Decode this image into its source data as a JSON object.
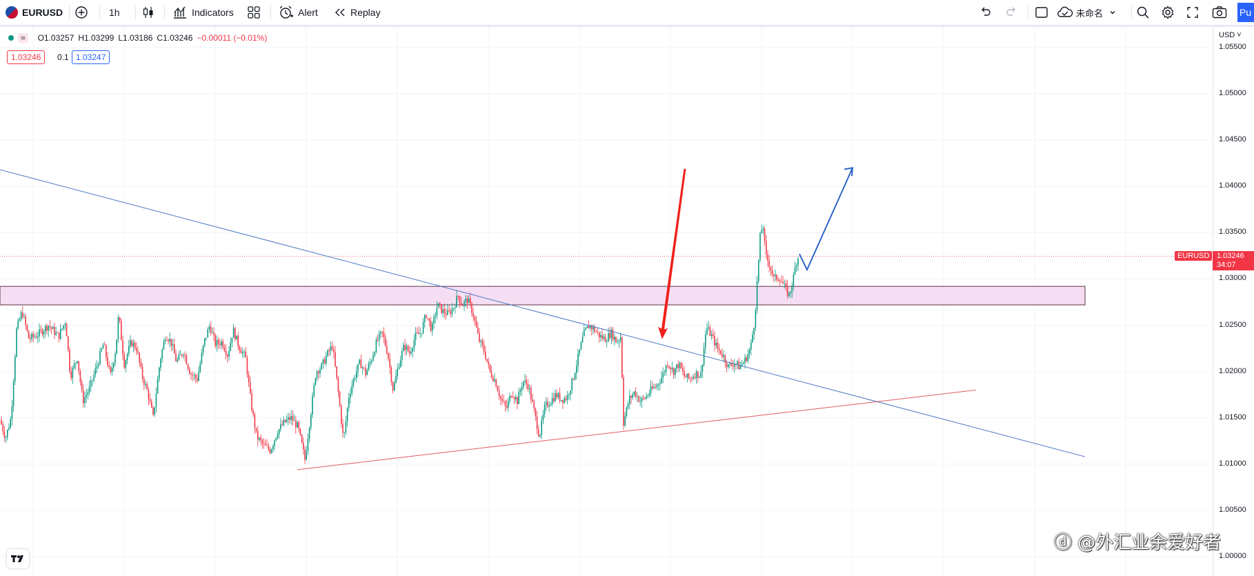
{
  "toolbar": {
    "symbol": "EURUSD",
    "interval": "1h",
    "indicators_label": "Indicators",
    "alert_label": "Alert",
    "replay_label": "Replay",
    "layout_name": "未命名",
    "publish_label": "Pu"
  },
  "legend": {
    "dot_color": "#089981",
    "symbol_glyph": "≈",
    "open": "O1.03257",
    "high": "H1.03299",
    "low": "L1.03186",
    "close": "C1.03246",
    "change": "−0.00011 (−0.01%)",
    "bid": "1.03246",
    "spread": "0.1",
    "ask": "1.03247"
  },
  "price_axis": {
    "currency": "USD",
    "ticks": [
      "1.05500",
      "1.05000",
      "1.04500",
      "1.04000",
      "1.03500",
      "1.03000",
      "1.02500",
      "1.02000",
      "1.01500",
      "1.01000",
      "1.00500",
      "1.00000"
    ],
    "last_symbol": "EURUSD",
    "last_price": "1.03246",
    "countdown": "34:07"
  },
  "colors": {
    "up": "#089981",
    "down": "#f23645",
    "trendline_blue": "#4a78c4",
    "trendline_red": "#e05a63",
    "zone_fill": "#f5def3",
    "zone_border": "#5a3045",
    "arrow_red": "#f0201c",
    "arrow_blue": "#2f66c8"
  },
  "chart_data": {
    "type": "candlestick",
    "symbol": "EURUSD",
    "interval": "1h",
    "last_close": 1.03246,
    "resistance_zone": [
      1.0272,
      1.0292
    ],
    "descending_trendline": [
      [
        0,
        1.0418
      ],
      [
        1573,
        1.0108
      ]
    ],
    "ascending_trendline": [
      [
        431,
        1.0094
      ],
      [
        1415,
        1.018
      ]
    ],
    "annotations": [
      {
        "type": "arrow",
        "color": "red",
        "from": [
          993,
          1.0419
        ],
        "to": [
          960,
          1.0235
        ]
      },
      {
        "type": "path-arrow",
        "color": "blue",
        "points": [
          [
            1159,
            1.0327
          ],
          [
            1170,
            1.031
          ],
          [
            1236,
            1.042
          ]
        ]
      }
    ],
    "path_points": [
      [
        0,
        1.0148
      ],
      [
        8,
        1.0128
      ],
      [
        16,
        1.015
      ],
      [
        24,
        1.0245
      ],
      [
        32,
        1.0265
      ],
      [
        42,
        1.0235
      ],
      [
        55,
        1.024
      ],
      [
        70,
        1.025
      ],
      [
        85,
        1.0238
      ],
      [
        95,
        1.0255
      ],
      [
        102,
        1.0195
      ],
      [
        112,
        1.0215
      ],
      [
        120,
        1.0168
      ],
      [
        130,
        1.0182
      ],
      [
        140,
        1.0205
      ],
      [
        150,
        1.023
      ],
      [
        160,
        1.0195
      ],
      [
        168,
        1.0225
      ],
      [
        172,
        1.0262
      ],
      [
        180,
        1.0208
      ],
      [
        190,
        1.0232
      ],
      [
        198,
        1.0225
      ],
      [
        206,
        1.0195
      ],
      [
        214,
        1.0178
      ],
      [
        222,
        1.015
      ],
      [
        232,
        1.0212
      ],
      [
        240,
        1.024
      ],
      [
        248,
        1.0232
      ],
      [
        256,
        1.021
      ],
      [
        266,
        1.0222
      ],
      [
        276,
        1.0198
      ],
      [
        286,
        1.0192
      ],
      [
        296,
        1.0232
      ],
      [
        304,
        1.025
      ],
      [
        312,
        1.023
      ],
      [
        322,
        1.0232
      ],
      [
        330,
        1.0218
      ],
      [
        338,
        1.0245
      ],
      [
        346,
        1.0228
      ],
      [
        356,
        1.0215
      ],
      [
        364,
        1.0165
      ],
      [
        372,
        1.013
      ],
      [
        382,
        1.012
      ],
      [
        392,
        1.0115
      ],
      [
        402,
        1.0135
      ],
      [
        412,
        1.0145
      ],
      [
        422,
        1.015
      ],
      [
        432,
        1.014
      ],
      [
        442,
        1.0105
      ],
      [
        450,
        1.0152
      ],
      [
        458,
        1.02
      ],
      [
        466,
        1.0205
      ],
      [
        474,
        1.0218
      ],
      [
        482,
        1.0228
      ],
      [
        490,
        1.018
      ],
      [
        498,
        1.0125
      ],
      [
        506,
        1.0175
      ],
      [
        514,
        1.0195
      ],
      [
        522,
        1.021
      ],
      [
        530,
        1.0198
      ],
      [
        538,
        1.0212
      ],
      [
        546,
        1.0232
      ],
      [
        554,
        1.0242
      ],
      [
        562,
        1.022
      ],
      [
        570,
        1.018
      ],
      [
        578,
        1.0208
      ],
      [
        586,
        1.0228
      ],
      [
        594,
        1.022
      ],
      [
        602,
        1.0238
      ],
      [
        610,
        1.0242
      ],
      [
        618,
        1.0262
      ],
      [
        626,
        1.0245
      ],
      [
        634,
        1.0272
      ],
      [
        642,
        1.0265
      ],
      [
        650,
        1.0262
      ],
      [
        658,
        1.027
      ],
      [
        664,
        1.0282
      ],
      [
        670,
        1.0272
      ],
      [
        678,
        1.0278
      ],
      [
        686,
        1.0262
      ],
      [
        694,
        1.0235
      ],
      [
        702,
        1.0222
      ],
      [
        710,
        1.02
      ],
      [
        718,
        1.019
      ],
      [
        726,
        1.017
      ],
      [
        734,
        1.016
      ],
      [
        742,
        1.0178
      ],
      [
        750,
        1.0168
      ],
      [
        758,
        1.019
      ],
      [
        766,
        1.0185
      ],
      [
        774,
        1.0158
      ],
      [
        782,
        1.013
      ],
      [
        790,
        1.0162
      ],
      [
        798,
        1.0168
      ],
      [
        806,
        1.0175
      ],
      [
        814,
        1.017
      ],
      [
        822,
        1.0172
      ],
      [
        830,
        1.019
      ],
      [
        838,
        1.0215
      ],
      [
        846,
        1.024
      ],
      [
        854,
        1.025
      ],
      [
        862,
        1.0245
      ],
      [
        870,
        1.0238
      ],
      [
        878,
        1.0235
      ],
      [
        886,
        1.0242
      ],
      [
        894,
        1.0232
      ],
      [
        900,
        1.0238
      ],
      [
        904,
        1.0145
      ],
      [
        912,
        1.017
      ],
      [
        920,
        1.0178
      ],
      [
        928,
        1.0168
      ],
      [
        936,
        1.0172
      ],
      [
        944,
        1.018
      ],
      [
        952,
        1.0185
      ],
      [
        960,
        1.0195
      ],
      [
        968,
        1.021
      ],
      [
        976,
        1.02
      ],
      [
        984,
        1.0208
      ],
      [
        992,
        1.0195
      ],
      [
        1000,
        1.0192
      ],
      [
        1008,
        1.0198
      ],
      [
        1016,
        1.0196
      ],
      [
        1024,
        1.0248
      ],
      [
        1032,
        1.0238
      ],
      [
        1040,
        1.0225
      ],
      [
        1048,
        1.0218
      ],
      [
        1056,
        1.0205
      ],
      [
        1064,
        1.021
      ],
      [
        1072,
        1.0205
      ],
      [
        1080,
        1.0212
      ],
      [
        1088,
        1.0225
      ],
      [
        1094,
        1.0255
      ],
      [
        1098,
        1.03
      ],
      [
        1102,
        1.0345
      ],
      [
        1106,
        1.036
      ],
      [
        1110,
        1.0325
      ],
      [
        1116,
        1.0315
      ],
      [
        1122,
        1.03
      ],
      [
        1130,
        1.0302
      ],
      [
        1138,
        1.029
      ],
      [
        1144,
        1.0282
      ],
      [
        1150,
        1.03
      ],
      [
        1154,
        1.0318
      ],
      [
        1158,
        1.0325
      ]
    ]
  }
}
